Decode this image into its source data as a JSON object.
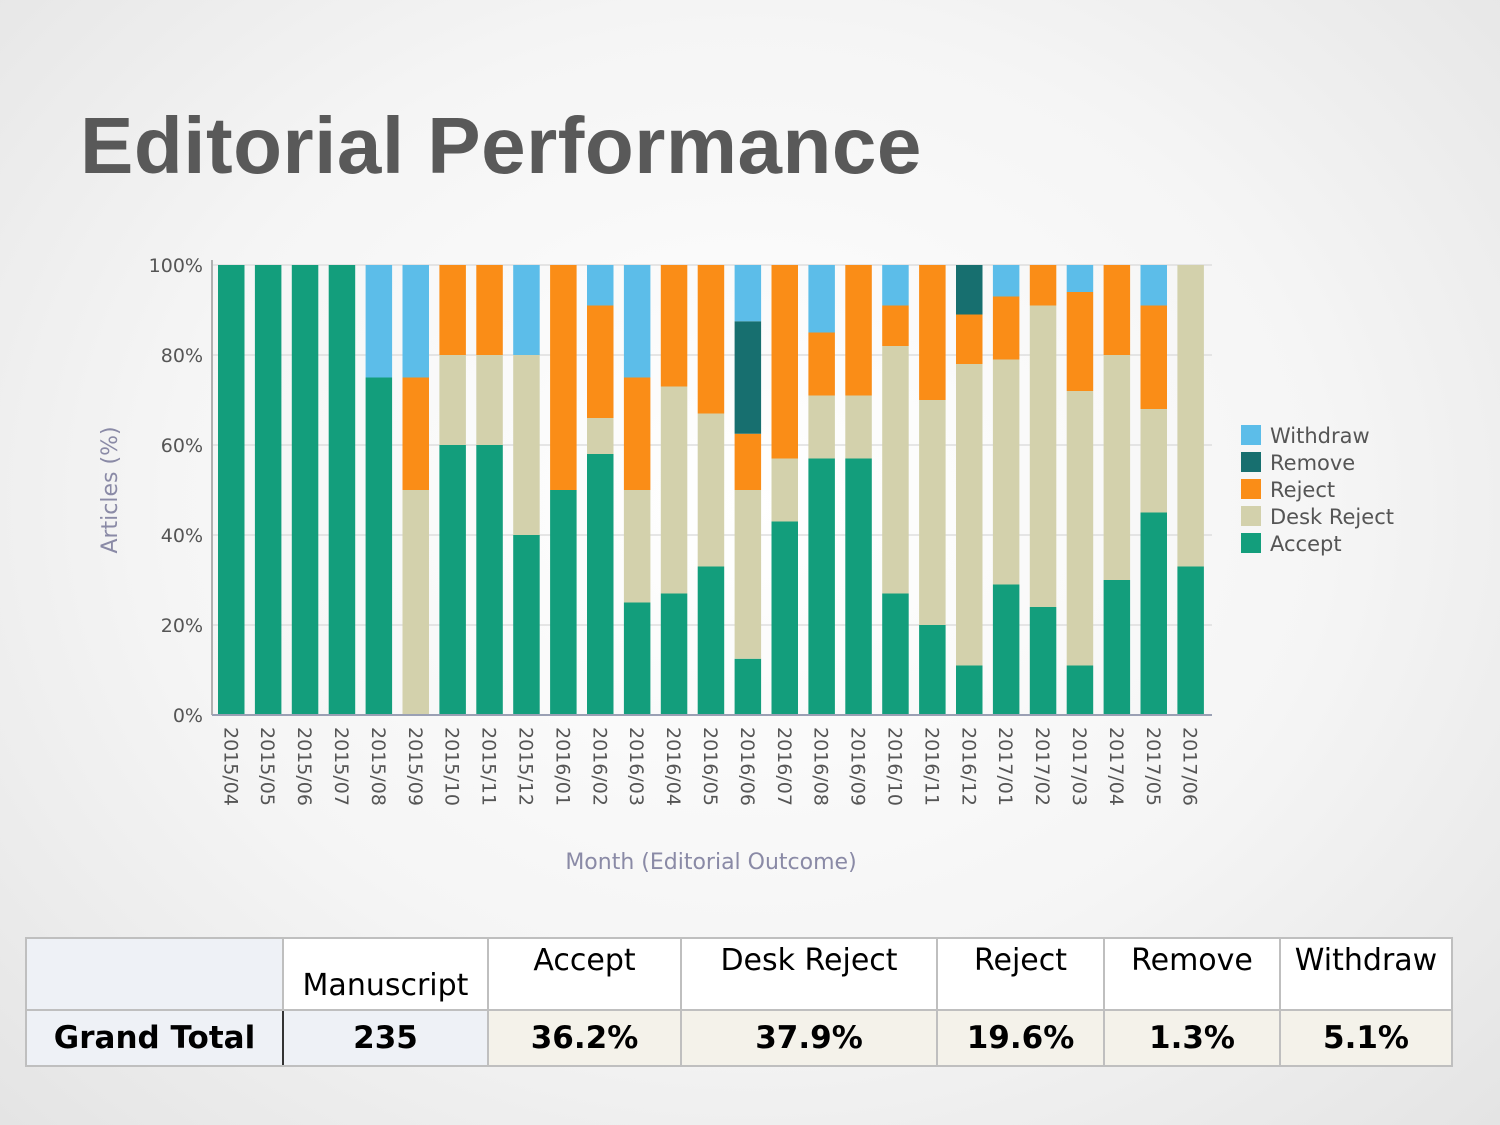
{
  "title": "Editorial Performance",
  "chart_data": {
    "type": "bar",
    "stacked": true,
    "percent": true,
    "categories": [
      "2015/04",
      "2015/05",
      "2015/06",
      "2015/07",
      "2015/08",
      "2015/09",
      "2015/10",
      "2015/11",
      "2015/12",
      "2016/01",
      "2016/02",
      "2016/03",
      "2016/04",
      "2016/05",
      "2016/06",
      "2016/07",
      "2016/08",
      "2016/09",
      "2016/10",
      "2016/11",
      "2016/12",
      "2017/01",
      "2017/02",
      "2017/03",
      "2017/04",
      "2017/05",
      "2017/06"
    ],
    "series": [
      {
        "name": "Accept",
        "color": "#139e7c",
        "values": [
          100,
          100,
          100,
          100,
          75,
          0,
          60,
          60,
          40,
          50,
          58,
          25,
          27,
          33,
          12.5,
          43,
          57,
          57,
          27,
          20,
          11,
          29,
          24,
          11,
          30,
          45,
          33
        ]
      },
      {
        "name": "Desk Reject",
        "color": "#d3d1ac",
        "values": [
          0,
          0,
          0,
          0,
          0,
          50,
          20,
          20,
          40,
          0,
          8,
          25,
          46,
          34,
          37.5,
          14,
          14,
          14,
          55,
          50,
          67,
          50,
          67,
          61,
          50,
          23,
          67
        ]
      },
      {
        "name": "Reject",
        "color": "#fa8d17",
        "values": [
          0,
          0,
          0,
          0,
          0,
          25,
          20,
          20,
          0,
          50,
          25,
          25,
          27,
          33,
          12.5,
          43,
          14,
          29,
          9,
          30,
          11,
          14,
          9,
          22,
          20,
          23,
          0
        ]
      },
      {
        "name": "Remove",
        "color": "#176f6f",
        "values": [
          0,
          0,
          0,
          0,
          0,
          0,
          0,
          0,
          0,
          0,
          0,
          0,
          0,
          0,
          25,
          0,
          0,
          0,
          0,
          0,
          11,
          0,
          0,
          0,
          0,
          0,
          0
        ]
      },
      {
        "name": "Withdraw",
        "color": "#5cbde9",
        "values": [
          0,
          0,
          0,
          0,
          25,
          25,
          0,
          0,
          20,
          0,
          9,
          25,
          0,
          0,
          12.5,
          0,
          15,
          0,
          9,
          0,
          0,
          7,
          0,
          6,
          0,
          9,
          0
        ]
      }
    ],
    "xlabel": "Month (Editorial Outcome)",
    "ylabel": "Articles (%)",
    "ylim": [
      0,
      100
    ],
    "yticks": [
      "0%",
      "20%",
      "40%",
      "60%",
      "80%",
      "100%"
    ],
    "yticks_values": [
      0,
      20,
      40,
      60,
      80,
      100
    ],
    "grid": true,
    "legend_order": [
      "Withdraw",
      "Remove",
      "Reject",
      "Desk Reject",
      "Accept"
    ],
    "legend_position": "right"
  },
  "table": {
    "headers": [
      "",
      "Manuscript",
      "Accept",
      "Desk Reject",
      "Reject",
      "Remove",
      "Withdraw"
    ],
    "row": {
      "label": "Grand Total",
      "manuscript": "235",
      "accept": "36.2%",
      "desk_reject": "37.9%",
      "reject": "19.6%",
      "remove": "1.3%",
      "withdraw": "5.1%"
    }
  }
}
